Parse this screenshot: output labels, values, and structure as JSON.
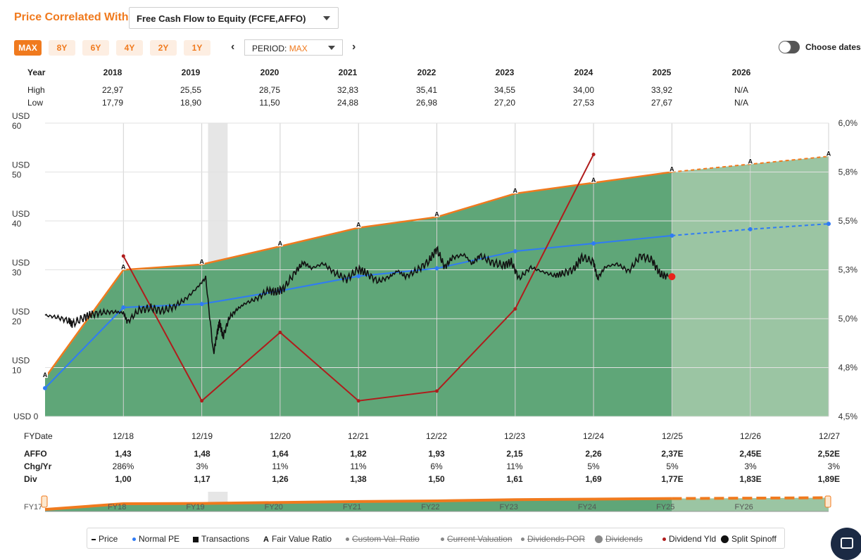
{
  "header": {
    "title": "Price Correlated With",
    "metric_select": "Free Cash Flow to Equity (FCFE,AFFO)",
    "ranges": [
      "MAX",
      "8Y",
      "6Y",
      "4Y",
      "2Y",
      "1Y"
    ],
    "active_range": "MAX",
    "period_label": "PERIOD:",
    "period_value": "MAX",
    "choose_dates": "Choose dates"
  },
  "year_table": {
    "label_year": "Year",
    "label_high": "High",
    "label_low": "Low",
    "years": [
      "2018",
      "2019",
      "2020",
      "2021",
      "2022",
      "2023",
      "2024",
      "2025",
      "2026"
    ],
    "high": [
      "22,97",
      "25,55",
      "28,75",
      "32,83",
      "35,41",
      "34,55",
      "34,00",
      "33,92",
      "N/A"
    ],
    "low": [
      "17,79",
      "18,90",
      "11,50",
      "24,88",
      "26,98",
      "27,20",
      "27,53",
      "27,67",
      "N/A"
    ]
  },
  "bottom_table": {
    "fy_label": "FYDate",
    "dates": [
      "12/18",
      "12/19",
      "12/20",
      "12/21",
      "12/22",
      "12/23",
      "12/24",
      "12/25",
      "12/26",
      "12/27"
    ],
    "affo_label": "AFFO",
    "affo": [
      "1,43",
      "1,48",
      "1,64",
      "1,82",
      "1,93",
      "2,15",
      "2,26",
      "2,37E",
      "2,45E",
      "2,52E"
    ],
    "chg_label": "Chg/Yr",
    "chg": [
      "286%",
      "3%",
      "11%",
      "11%",
      "6%",
      "11%",
      "5%",
      "5%",
      "3%",
      "3%"
    ],
    "div_label": "Div",
    "div": [
      "1,00",
      "1,17",
      "1,26",
      "1,38",
      "1,50",
      "1,61",
      "1,69",
      "1,77E",
      "1,83E",
      "1,89E"
    ]
  },
  "navigator": {
    "labels": [
      "FY17",
      "FY18",
      "FY19",
      "FY20",
      "FY21",
      "FY22",
      "FY23",
      "FY24",
      "FY25",
      "FY26"
    ]
  },
  "legend": [
    {
      "label": "Price",
      "marker": "dash",
      "color": "#111111",
      "enabled": true
    },
    {
      "label": "Normal PE",
      "marker": "dot",
      "color": "#2f7bf5",
      "enabled": true
    },
    {
      "label": "Transactions",
      "marker": "square",
      "color": "#111111",
      "enabled": true
    },
    {
      "label": "Fair Value Ratio",
      "marker": "A",
      "color": "#111111",
      "enabled": true
    },
    {
      "label": "Custom Val. Ratio",
      "marker": "dot",
      "color": "#888888",
      "enabled": false
    },
    {
      "label": "Current Valuation",
      "marker": "dot",
      "color": "#888888",
      "enabled": false
    },
    {
      "label": "Dividends POR",
      "marker": "dot",
      "color": "#888888",
      "enabled": false
    },
    {
      "label": "Dividends",
      "marker": "bigdot",
      "color": "#888888",
      "enabled": false
    },
    {
      "label": "Dividend Yld",
      "marker": "dot",
      "color": "#b01c1c",
      "enabled": true
    },
    {
      "label": "Split Spinoff",
      "marker": "bigdot",
      "color": "#111111",
      "enabled": true
    }
  ],
  "colors": {
    "accent": "#f07a1e",
    "fair_value_fill": "#5fa678",
    "forecast_fill": "#9bc5a3",
    "fair_value_line": "#f07a1e",
    "normal_pe": "#2f7bf5",
    "price": "#111111",
    "dividend_yield": "#b01c1c",
    "recession_band": "#e6e6e6"
  },
  "chart_data": {
    "type": "area",
    "y_left": {
      "ticks": [
        "USD 0",
        "USD\n10",
        "USD\n20",
        "USD\n30",
        "USD\n40",
        "USD\n50",
        "USD\n60"
      ],
      "range": [
        0,
        60
      ]
    },
    "y_right": {
      "ticks": [
        "4,5%",
        "4,8%",
        "5,0%",
        "5,3%",
        "5,5%",
        "5,8%",
        "6,0%"
      ],
      "range": [
        4.5,
        6.0
      ]
    },
    "x_range": [
      2017.0,
      2027.0
    ],
    "recession_band": [
      2019.08,
      2019.33
    ],
    "forecast_start": 2025.0,
    "fair_value": {
      "x": [
        2017.0,
        2018.0,
        2019.0,
        2020.0,
        2021.0,
        2022.0,
        2023.0,
        2024.0,
        2025.0,
        2026.0,
        2027.0
      ],
      "values": [
        7.9,
        30.0,
        31.1,
        34.8,
        38.6,
        40.8,
        45.6,
        47.8,
        50.0,
        51.6,
        53.2
      ]
    },
    "normal_pe": {
      "x": [
        2017.0,
        2018.0,
        2019.0,
        2020.0,
        2021.0,
        2022.0,
        2023.0,
        2024.0,
        2025.0,
        2026.0,
        2027.0
      ],
      "values": [
        5.8,
        22.3,
        23.0,
        25.7,
        28.7,
        30.3,
        33.8,
        35.4,
        37.0,
        38.3,
        39.4
      ]
    },
    "dividend_yield": {
      "x": [
        2018.0,
        2019.0,
        2020.0,
        2021.0,
        2022.0,
        2023.0,
        2024.0
      ],
      "values": [
        5.32,
        4.58,
        4.93,
        4.58,
        4.63,
        5.05,
        5.84
      ]
    },
    "price": {
      "x": [
        2017.0,
        2017.15,
        2017.3,
        2017.35,
        2017.5,
        2017.6,
        2017.75,
        2017.9,
        2018.0,
        2018.05,
        2018.2,
        2018.35,
        2018.5,
        2018.65,
        2018.8,
        2018.95,
        2019.05,
        2019.15,
        2019.2,
        2019.23,
        2019.27,
        2019.35,
        2019.45,
        2019.55,
        2019.7,
        2019.85,
        2019.95,
        2020.05,
        2020.2,
        2020.3,
        2020.4,
        2020.55,
        2020.7,
        2020.85,
        2021.0,
        2021.1,
        2021.25,
        2021.4,
        2021.5,
        2021.6,
        2021.75,
        2021.9,
        2022.0,
        2022.1,
        2022.2,
        2022.35,
        2022.45,
        2022.55,
        2022.7,
        2022.85,
        2022.95,
        2023.05,
        2023.2,
        2023.35,
        2023.5,
        2023.6,
        2023.75,
        2023.85,
        2024.0,
        2024.05,
        2024.15,
        2024.3,
        2024.45,
        2024.6,
        2024.75,
        2024.85,
        2024.95
      ],
      "values": [
        20.7,
        20.3,
        19.6,
        18.9,
        20.3,
        20.9,
        21.3,
        21.4,
        21.2,
        19.3,
        21.8,
        22.2,
        21.6,
        22.5,
        24.1,
        26.5,
        28.4,
        12.8,
        17.4,
        19.3,
        16.2,
        20.2,
        21.9,
        23.1,
        24.1,
        25.8,
        25.4,
        26.2,
        29.7,
        31.5,
        30.3,
        31.3,
        29.3,
        28.1,
        30.2,
        29.3,
        27.6,
        28.6,
        29.8,
        28.6,
        29.9,
        31.8,
        34.3,
        30.5,
        32.5,
        33.1,
        31.2,
        32.9,
        31.5,
        30.9,
        31.6,
        28.2,
        30.5,
        29.6,
        28.8,
        29.2,
        30.1,
        32.6,
        31.6,
        28.2,
        30.6,
        31.2,
        29.7,
        32.9,
        31.9,
        29.1,
        28.6
      ]
    },
    "current_price": {
      "x": 2025.0,
      "value": 28.6
    }
  }
}
